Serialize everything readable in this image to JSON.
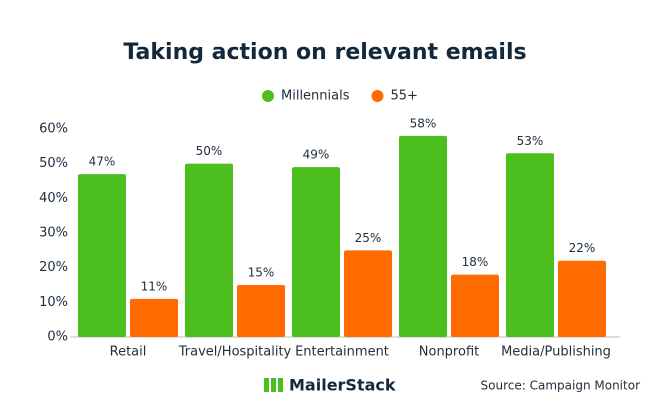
{
  "chart_data": {
    "type": "bar",
    "title": "Taking action on relevant emails",
    "categories": [
      "Retail",
      "Travel/Hospitality",
      "Entertainment",
      "Nonprofit",
      "Media/Publishing"
    ],
    "series": [
      {
        "name": "Millennials",
        "color": "#4cbf1f",
        "values": [
          47,
          50,
          49,
          58,
          53
        ],
        "value_labels": [
          "47%",
          "50%",
          "49%",
          "58%",
          "53%"
        ]
      },
      {
        "name": "55+",
        "color": "#ff6b00",
        "values": [
          11,
          15,
          25,
          18,
          22
        ],
        "value_labels": [
          "11%",
          "15%",
          "25%",
          "18%",
          "22%"
        ]
      }
    ],
    "ylim": [
      0,
      60
    ],
    "yticks": [
      {
        "value": 0,
        "label": "0%"
      },
      {
        "value": 10,
        "label": "10%"
      },
      {
        "value": 20,
        "label": "20%"
      },
      {
        "value": 30,
        "label": "30%"
      },
      {
        "value": 40,
        "label": "40%"
      },
      {
        "value": 50,
        "label": "50%"
      },
      {
        "value": 60,
        "label": "60%"
      }
    ],
    "grid": false,
    "brand": "MailerStack",
    "source": "Source: Campaign Monitor"
  }
}
